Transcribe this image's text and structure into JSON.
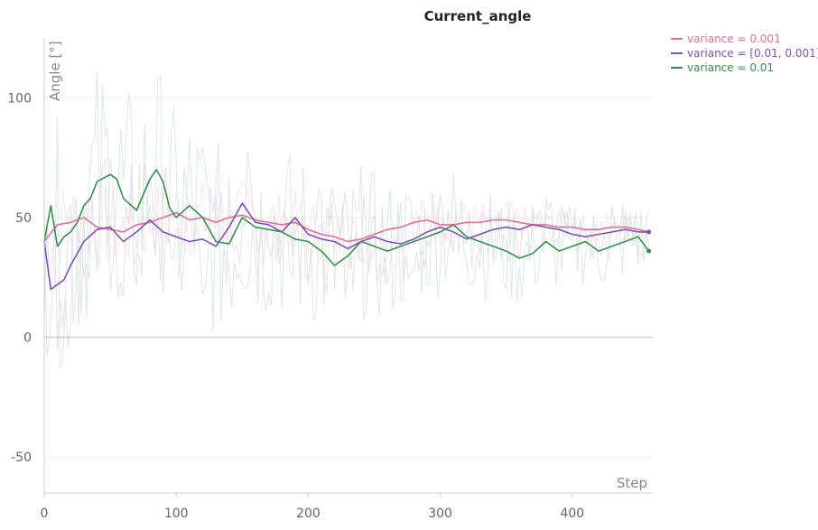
{
  "chart_data": {
    "type": "line",
    "title": "Current_angle",
    "xlabel": "Step",
    "ylabel": "Angle [°]",
    "xlim": [
      0,
      461
    ],
    "ylim": [
      -65,
      125
    ],
    "xticks": [
      0,
      100,
      200,
      300,
      400
    ],
    "yticks": [
      -50,
      0,
      50,
      100
    ],
    "grid": true,
    "legend_position": "top-right",
    "series": [
      {
        "name": "variance = 0.001",
        "color": "#e0709a",
        "x": [
          0,
          10,
          20,
          30,
          40,
          50,
          60,
          70,
          80,
          90,
          100,
          110,
          120,
          130,
          140,
          150,
          160,
          170,
          180,
          190,
          200,
          210,
          220,
          230,
          240,
          250,
          260,
          270,
          280,
          290,
          300,
          310,
          320,
          330,
          340,
          350,
          360,
          370,
          380,
          390,
          400,
          410,
          420,
          430,
          440,
          450,
          458
        ],
        "values": [
          40,
          47,
          48,
          50,
          46,
          45,
          44,
          47,
          48,
          50,
          52,
          49,
          50,
          48,
          50,
          51,
          49,
          48,
          47,
          48,
          45,
          43,
          42,
          40,
          41,
          43,
          45,
          46,
          48,
          49,
          47,
          47,
          48,
          48,
          49,
          49,
          48,
          47,
          47,
          46,
          46,
          45,
          45,
          46,
          46,
          45,
          44
        ]
      },
      {
        "name": "variance = [0.01, 0.001]",
        "color": "#7b55b0",
        "x": [
          0,
          5,
          10,
          15,
          20,
          25,
          30,
          40,
          50,
          60,
          70,
          80,
          90,
          100,
          110,
          120,
          130,
          140,
          150,
          160,
          170,
          180,
          190,
          200,
          210,
          220,
          230,
          240,
          250,
          260,
          270,
          280,
          290,
          300,
          310,
          320,
          330,
          340,
          350,
          360,
          370,
          380,
          390,
          400,
          410,
          420,
          430,
          440,
          450,
          458
        ],
        "values": [
          40,
          20,
          22,
          24,
          30,
          35,
          40,
          45,
          46,
          40,
          44,
          49,
          44,
          42,
          40,
          41,
          38,
          46,
          56,
          48,
          47,
          44,
          50,
          43,
          41,
          40,
          37,
          40,
          42,
          40,
          39,
          41,
          44,
          46,
          44,
          41,
          43,
          45,
          46,
          45,
          47,
          46,
          45,
          43,
          42,
          43,
          44,
          45,
          44,
          44
        ]
      },
      {
        "name": "variance = 0.01",
        "color": "#3a8f4e",
        "x": [
          0,
          5,
          10,
          15,
          20,
          25,
          30,
          35,
          40,
          50,
          55,
          60,
          70,
          80,
          85,
          90,
          95,
          100,
          110,
          120,
          130,
          140,
          150,
          160,
          170,
          180,
          190,
          200,
          210,
          220,
          230,
          240,
          250,
          260,
          270,
          280,
          290,
          300,
          310,
          320,
          330,
          340,
          350,
          360,
          370,
          380,
          390,
          400,
          410,
          420,
          430,
          440,
          450,
          458
        ],
        "values": [
          40,
          55,
          38,
          42,
          44,
          48,
          55,
          58,
          65,
          68,
          66,
          58,
          53,
          66,
          70,
          65,
          54,
          50,
          55,
          50,
          40,
          39,
          50,
          46,
          45,
          44,
          41,
          40,
          36,
          30,
          34,
          40,
          38,
          36,
          38,
          40,
          42,
          44,
          47,
          42,
          40,
          38,
          36,
          33,
          35,
          40,
          36,
          38,
          40,
          36,
          38,
          40,
          42,
          36
        ]
      }
    ]
  }
}
